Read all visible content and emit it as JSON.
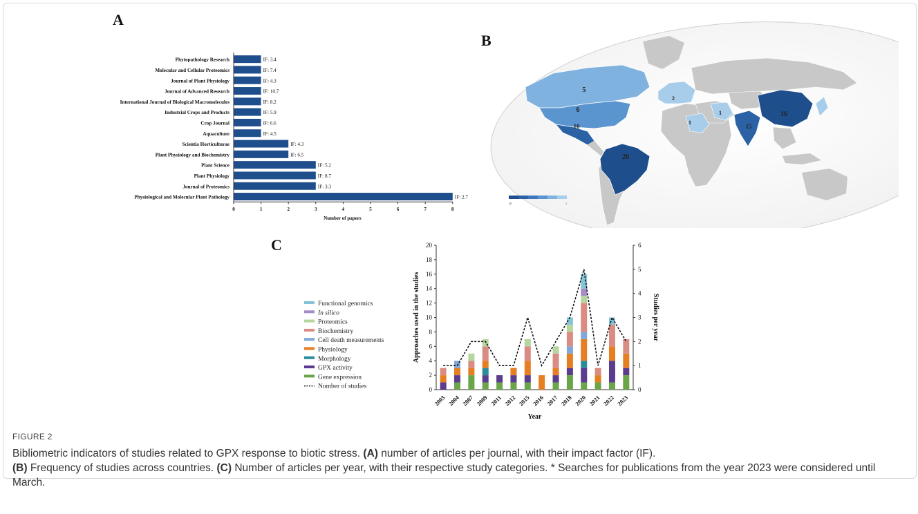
{
  "panels": {
    "a": "A",
    "b": "B",
    "c": "C"
  },
  "chart_data": [
    {
      "type": "bar",
      "orientation": "horizontal",
      "categories": [
        "Phytopathology Research",
        "Molecular and Cellular Proteomics",
        "Journal of Plant Physiology",
        "Journal of Advanced Research",
        "International Journal of Biological Macromolecules",
        "Industrial Crops and Products",
        "Crop Journal",
        "Aquaculture",
        "Scientia Horticulturae",
        "Plant Physiology and Biochemistry",
        "Plant Science",
        "Plant Physiology",
        "Journal of Proteomics",
        "Physiological and Molecular Plant Pathology"
      ],
      "values": [
        1,
        1,
        1,
        1,
        1,
        1,
        1,
        1,
        2,
        2,
        3,
        3,
        3,
        8
      ],
      "annotations": [
        "IF: 3.4",
        "IF: 7.4",
        "IF: 4.3",
        "IF: 10.7",
        "IF: 8.2",
        "IF: 5.9",
        "IF: 6.6",
        "IF: 4.5",
        "IF: 4.3",
        "IF: 6.5",
        "IF: 5.2",
        "IF: 8.7",
        "IF: 3.3",
        "IF: 2.7"
      ],
      "xlabel": "Number of papers",
      "xticks": [
        "0",
        "1",
        "2",
        "3",
        "4",
        "5",
        "6",
        "7",
        "8"
      ],
      "xlim": [
        0,
        8
      ],
      "color": "#1f4e8c"
    },
    {
      "type": "map",
      "labels": [
        {
          "region": "Canada",
          "value": "5"
        },
        {
          "region": "United States",
          "value": "6"
        },
        {
          "region": "Mexico",
          "value": "10"
        },
        {
          "region": "Brazil",
          "value": "20"
        },
        {
          "region": "China",
          "value": "16"
        },
        {
          "region": "India",
          "value": "15"
        },
        {
          "region": "Saudi Arabia",
          "value": "1"
        },
        {
          "region": "Iran",
          "value": "1"
        },
        {
          "region": "Europe",
          "value": "2"
        }
      ],
      "legend_min": "20",
      "legend_max": "1",
      "colors": [
        "#1f4e8c",
        "#2b62a6",
        "#3d78bf",
        "#5b95d0",
        "#7fb2de",
        "#a8cdea"
      ],
      "no_data_color": "#c8c8c8"
    },
    {
      "type": "bar",
      "stacked": true,
      "categories": [
        "2003",
        "2004",
        "2007",
        "2009",
        "2011",
        "2012",
        "2015",
        "2016",
        "2017",
        "2018",
        "2020",
        "2021",
        "2022",
        "2023"
      ],
      "series": [
        {
          "name": "Gene expression",
          "color": "#6ba54a",
          "values": [
            0,
            1,
            2,
            1,
            1,
            1,
            1,
            0,
            1,
            2,
            1,
            1,
            1,
            2
          ]
        },
        {
          "name": "GPX activity",
          "color": "#5b3c8f",
          "values": [
            1,
            1,
            0,
            1,
            1,
            1,
            1,
            0,
            1,
            1,
            2,
            0,
            3,
            1
          ]
        },
        {
          "name": "Morphology",
          "color": "#2b8c9c",
          "values": [
            0,
            0,
            0,
            1,
            0,
            0,
            0,
            0,
            0,
            0,
            1,
            0,
            0,
            0
          ]
        },
        {
          "name": "Physiology",
          "color": "#e67e22",
          "values": [
            1,
            1,
            1,
            1,
            0,
            1,
            2,
            2,
            1,
            2,
            3,
            1,
            2,
            2
          ]
        },
        {
          "name": "Cell death measurements",
          "color": "#7fa7d9",
          "values": [
            0,
            1,
            0,
            0,
            0,
            0,
            0,
            0,
            0,
            1,
            1,
            0,
            0,
            0
          ]
        },
        {
          "name": "Biochemistry",
          "color": "#d98c84",
          "values": [
            1,
            0,
            1,
            2,
            0,
            0,
            2,
            0,
            2,
            2,
            4,
            1,
            3,
            2
          ]
        },
        {
          "name": "Proteomics",
          "color": "#b5d69e",
          "values": [
            0,
            0,
            1,
            1,
            0,
            0,
            1,
            0,
            1,
            1,
            1,
            0,
            0,
            0
          ]
        },
        {
          "name": "In silico",
          "color": "#a58cc8",
          "values": [
            0,
            0,
            0,
            0,
            0,
            0,
            0,
            0,
            0,
            0,
            1,
            0,
            0,
            0
          ]
        },
        {
          "name": "Functional genomics",
          "color": "#87c3d8",
          "values": [
            0,
            0,
            0,
            0,
            0,
            0,
            0,
            0,
            0,
            1,
            2,
            0,
            1,
            0
          ]
        }
      ],
      "line_series": {
        "name": "Number of studies",
        "values": [
          1,
          1,
          2,
          2,
          1,
          1,
          3,
          1,
          2,
          3,
          5,
          1,
          3,
          2
        ]
      },
      "xlabel": "Year",
      "ylabel": "Approaches used in the studies",
      "y2label": "Studies per year",
      "yticks": [
        "0",
        "2",
        "4",
        "6",
        "8",
        "10",
        "12",
        "14",
        "16",
        "18",
        "20"
      ],
      "y2ticks": [
        "0",
        "1",
        "2",
        "3",
        "4",
        "5",
        "6"
      ],
      "ylim": [
        0,
        20
      ],
      "y2lim": [
        0,
        6
      ],
      "legend_position": "left"
    }
  ],
  "caption": {
    "figure_label": "FIGURE 2",
    "line1": "Bibliometric indicators of studies related to GPX response to biotic stress. ",
    "a_tag": "(A)",
    "a_text": " number of articles per journal, with their impact factor (IF).",
    "b_tag": "(B)",
    "b_text": " Frequency of studies across countries. ",
    "c_tag": "(C)",
    "c_text": " Number of articles per year, with their respective study categories. * Searches for publications from the year 2023 were considered until March."
  }
}
